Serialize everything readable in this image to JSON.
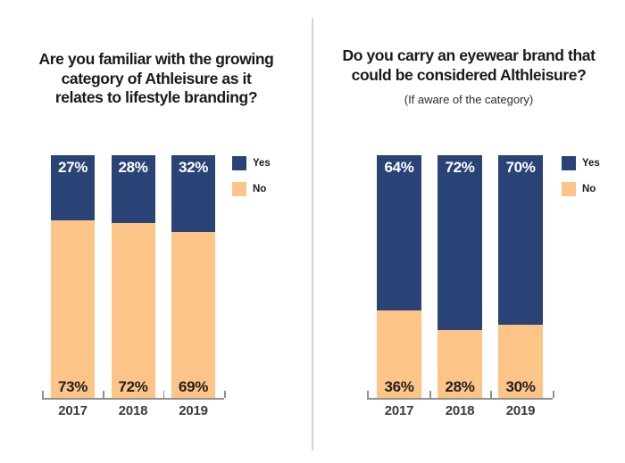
{
  "colors": {
    "yes": "#2a4376",
    "no": "#fcc487",
    "axis": "#8f8f8f",
    "divider": "#d4d4d4",
    "title": "#1a1a1a"
  },
  "legend": {
    "yes": "Yes",
    "no": "No"
  },
  "charts": [
    {
      "title_lines": [
        "Are you familiar with the growing",
        "category of Athleisure as it",
        "relates to lifestyle branding?"
      ],
      "subtitle": ""
    },
    {
      "title_lines": [
        "Do you carry an eyewear brand that",
        "could be considered Althleisure?"
      ],
      "subtitle": "(If aware of the category)"
    }
  ],
  "chart_data": [
    {
      "type": "bar",
      "stacked": true,
      "title": "Are you familiar with the growing category of Athleisure as it relates to lifestyle branding?",
      "categories": [
        "2017",
        "2018",
        "2019"
      ],
      "series": [
        {
          "name": "Yes",
          "values": [
            27,
            28,
            32
          ],
          "color": "#2a4376"
        },
        {
          "name": "No",
          "values": [
            73,
            72,
            69
          ],
          "color": "#fcc487"
        }
      ],
      "ylim": [
        0,
        100
      ],
      "unit": "percent",
      "grid": false,
      "legend_position": "right",
      "value_labels": "inside"
    },
    {
      "type": "bar",
      "stacked": true,
      "title": "Do you carry an eyewear brand that could be considered Althleisure?",
      "subtitle": "(If aware of the category)",
      "categories": [
        "2017",
        "2018",
        "2019"
      ],
      "series": [
        {
          "name": "Yes",
          "values": [
            64,
            72,
            70
          ],
          "color": "#2a4376"
        },
        {
          "name": "No",
          "values": [
            36,
            28,
            30
          ],
          "color": "#fcc487"
        }
      ],
      "ylim": [
        0,
        100
      ],
      "unit": "percent",
      "grid": false,
      "legend_position": "right",
      "value_labels": "inside"
    }
  ]
}
